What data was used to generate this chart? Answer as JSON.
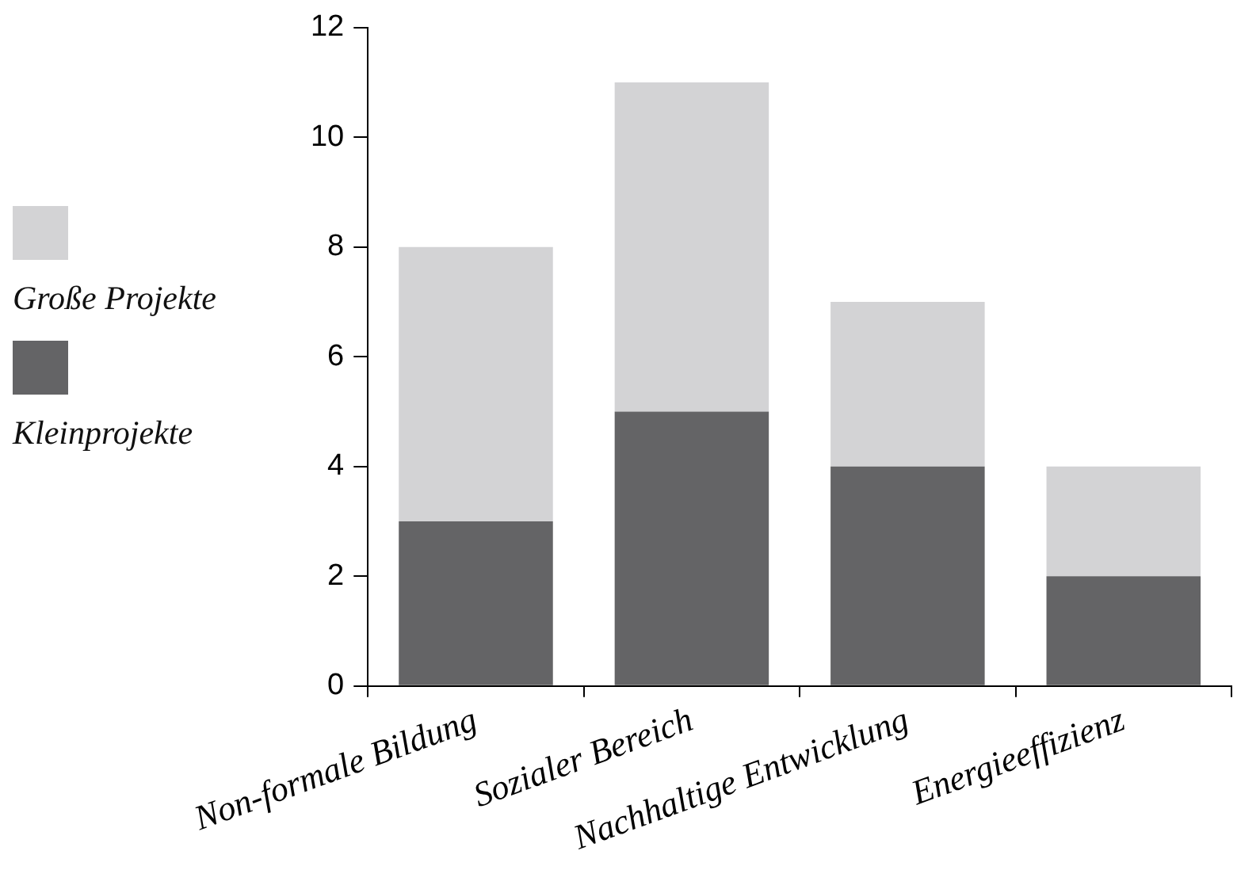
{
  "chart_data": {
    "type": "bar",
    "stacked": true,
    "categories": [
      "Non-formale Bildung",
      "Sozialer Bereich",
      "Nachhaltige Entwicklung",
      "Energieeffizienz"
    ],
    "series": [
      {
        "name": "Kleinprojekte",
        "color": "#646466",
        "values": [
          3,
          5,
          4,
          2
        ]
      },
      {
        "name": "Große Projekte",
        "color": "#d3d3d5",
        "values": [
          5,
          6,
          3,
          2
        ]
      }
    ],
    "ylim": [
      0,
      12
    ],
    "yticks": [
      0,
      2,
      4,
      6,
      8,
      10,
      12
    ],
    "grid": false,
    "legend": "left"
  }
}
